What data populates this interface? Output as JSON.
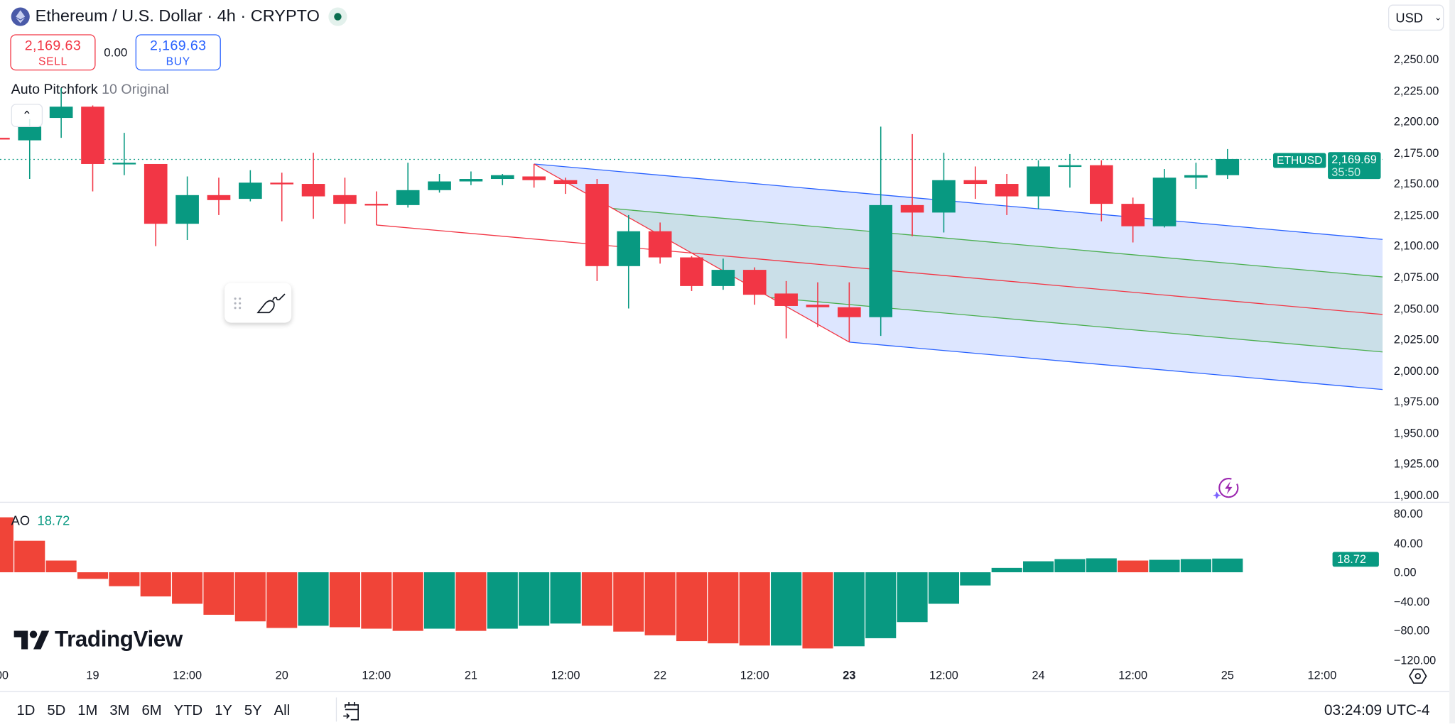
{
  "header": {
    "title": "Ethereum / U.S. Dollar · 4h · CRYPTO",
    "market_status_color": "#0b6e4f"
  },
  "trade": {
    "sell_price": "2,169.63",
    "sell_label": "SELL",
    "spread": "0.00",
    "buy_price": "2,169.63",
    "buy_label": "BUY"
  },
  "indicator_legend": {
    "name": "Auto Pitchfork",
    "params": "10 Original"
  },
  "currency": {
    "selected": "USD"
  },
  "colors": {
    "up": "#089981",
    "down": "#f23645",
    "ao_down": "#f04438",
    "ao_up": "#089981",
    "pitchfork_outer": "#2962ff",
    "pitchfork_median": "#f23645",
    "pitchfork_inner": "#4caf50"
  },
  "last_price": {
    "symbol": "ETHUSD",
    "price": "2,169.69",
    "countdown": "35:50",
    "value": 2169.69
  },
  "ao": {
    "label": "AO",
    "value": "18.72"
  },
  "chart_data": [
    {
      "type": "candlestick",
      "title": "Ethereum / U.S. Dollar · 4h · CRYPTO",
      "ylim": [
        1890,
        2262
      ],
      "y_ticks": [
        "2,250.00",
        "2,225.00",
        "2,200.00",
        "2,175.00",
        "2,150.00",
        "2,125.00",
        "2,100.00",
        "2,075.00",
        "2,050.00",
        "2,025.00",
        "2,000.00",
        "1,975.00",
        "1,950.00",
        "1,925.00",
        "1,900.00"
      ],
      "x_ticks": [
        "00",
        "19",
        "12:00",
        "20",
        "12:00",
        "21",
        "12:00",
        "22",
        "12:00",
        "23",
        "12:00",
        "24",
        "12:00",
        "25",
        "12:00"
      ],
      "x_tick_bold": "23",
      "ohlc": [
        [
          2187,
          2186,
          2187,
          2186
        ],
        [
          2185,
          2196,
          2202,
          2154
        ],
        [
          2203,
          2212,
          2227,
          2187
        ],
        [
          2212,
          2166,
          2213,
          2144
        ],
        [
          2166,
          2167,
          2191,
          2157
        ],
        [
          2166,
          2118,
          2166,
          2100
        ],
        [
          2118,
          2141,
          2156,
          2105
        ],
        [
          2141,
          2137,
          2155,
          2125
        ],
        [
          2138,
          2151,
          2161,
          2136
        ],
        [
          2151,
          2150,
          2159,
          2120
        ],
        [
          2150,
          2140,
          2175,
          2122
        ],
        [
          2141,
          2134,
          2155,
          2118
        ],
        [
          2134,
          2133,
          2144,
          2117
        ],
        [
          2133,
          2145,
          2167,
          2131
        ],
        [
          2145,
          2152,
          2158,
          2143
        ],
        [
          2152,
          2154,
          2160,
          2149
        ],
        [
          2154,
          2157,
          2158,
          2149
        ],
        [
          2156,
          2153,
          2166,
          2147
        ],
        [
          2153,
          2150,
          2155,
          2142
        ],
        [
          2150,
          2084,
          2154,
          2072
        ],
        [
          2084,
          2112,
          2125,
          2050
        ],
        [
          2112,
          2091,
          2119,
          2086
        ],
        [
          2091,
          2068,
          2092,
          2064
        ],
        [
          2068,
          2081,
          2090,
          2065
        ],
        [
          2081,
          2061,
          2083,
          2053
        ],
        [
          2062,
          2052,
          2072,
          2026
        ],
        [
          2053,
          2051,
          2071,
          2035
        ],
        [
          2051,
          2043,
          2071,
          2023
        ],
        [
          2043,
          2133,
          2196,
          2028
        ],
        [
          2133,
          2127,
          2190,
          2108
        ],
        [
          2127,
          2153,
          2175,
          2111
        ],
        [
          2153,
          2150,
          2164,
          2138
        ],
        [
          2150,
          2140,
          2158,
          2125
        ],
        [
          2140,
          2164,
          2169,
          2130
        ],
        [
          2164,
          2165,
          2174,
          2147
        ],
        [
          2165,
          2134,
          2169,
          2120
        ],
        [
          2134,
          2116,
          2139,
          2103
        ],
        [
          2116,
          2155,
          2162,
          2115
        ],
        [
          2155,
          2157,
          2167,
          2146
        ],
        [
          2157,
          2170,
          2178,
          2154
        ]
      ],
      "pitchfork": {
        "style": "Original",
        "pivots": [
          {
            "bar": 12,
            "price": 2117
          },
          {
            "bar": 17,
            "price": 2166
          },
          {
            "bar": 27,
            "price": 2023
          }
        ]
      }
    },
    {
      "type": "bar",
      "series_name": "AO",
      "ylim": [
        -125,
        85
      ],
      "y_ticks": [
        "80.00",
        "40.00",
        "0.00",
        "-40.00",
        "-80.00",
        "-120.00"
      ],
      "values": [
        75,
        43,
        16,
        -9,
        -19,
        -33,
        -43,
        -58,
        -67,
        -76,
        -73,
        -75,
        -77,
        -80,
        -77,
        -80,
        -77,
        -73,
        -70,
        -73,
        -81,
        -86,
        -94,
        -97,
        -100,
        -100,
        -104,
        -101,
        -90,
        -68,
        -43,
        -18,
        6,
        15,
        18,
        19,
        16,
        17,
        18,
        18.72
      ]
    }
  ],
  "logo": "TradingView",
  "range_buttons": [
    "1D",
    "5D",
    "1M",
    "3M",
    "6M",
    "YTD",
    "1Y",
    "5Y",
    "All"
  ],
  "clock": "03:24:09 UTC-4"
}
